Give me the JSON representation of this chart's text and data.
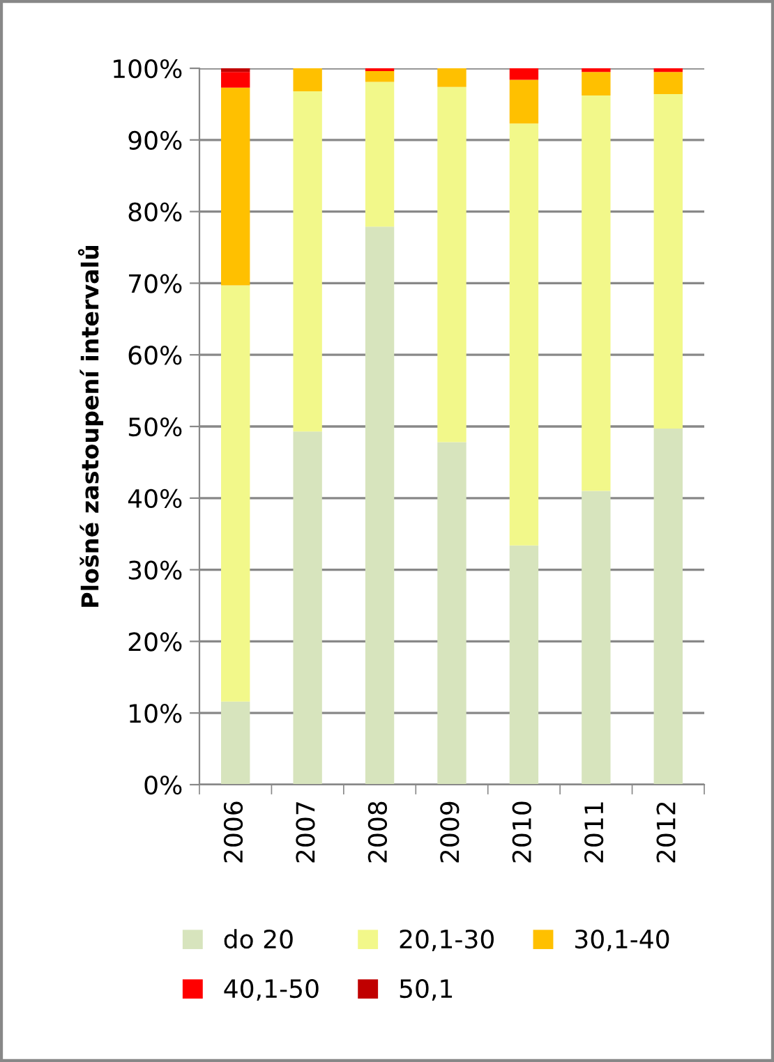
{
  "chart_data": {
    "type": "bar",
    "stacked": true,
    "ylabel": "Plošné zastoupení intervalů",
    "categories": [
      "2006",
      "2007",
      "2008",
      "2009",
      "2010",
      "2011",
      "2012"
    ],
    "series": [
      {
        "name": "do 20",
        "color": "#d7e4bd",
        "values": [
          11.6,
          49.3,
          77.9,
          47.8,
          33.4,
          41.0,
          49.7
        ]
      },
      {
        "name": "20,1-30",
        "color": "#f2f88a",
        "values": [
          58.1,
          47.5,
          20.2,
          49.6,
          58.9,
          55.2,
          46.7
        ]
      },
      {
        "name": "30,1-40",
        "color": "#ffc000",
        "values": [
          27.6,
          3.2,
          1.5,
          2.6,
          6.1,
          3.3,
          3.1
        ]
      },
      {
        "name": "40,1-50",
        "color": "#ff0000",
        "values": [
          2.2,
          0,
          0.4,
          0,
          1.6,
          0.5,
          0.5
        ]
      },
      {
        "name": "50,1",
        "color": "#c00000",
        "values": [
          0.5,
          0,
          0,
          0,
          0,
          0,
          0
        ]
      }
    ],
    "ylim": [
      0,
      100
    ],
    "yticks": [
      {
        "value": 0,
        "label": "0%"
      },
      {
        "value": 10,
        "label": "10%"
      },
      {
        "value": 20,
        "label": "20%"
      },
      {
        "value": 30,
        "label": "30%"
      },
      {
        "value": 40,
        "label": "40%"
      },
      {
        "value": 50,
        "label": "50%"
      },
      {
        "value": 60,
        "label": "60%"
      },
      {
        "value": 70,
        "label": "70%"
      },
      {
        "value": 80,
        "label": "80%"
      },
      {
        "value": 90,
        "label": "90%"
      },
      {
        "value": 100,
        "label": "100%"
      }
    ],
    "grid": "y",
    "legend": "bottom"
  }
}
